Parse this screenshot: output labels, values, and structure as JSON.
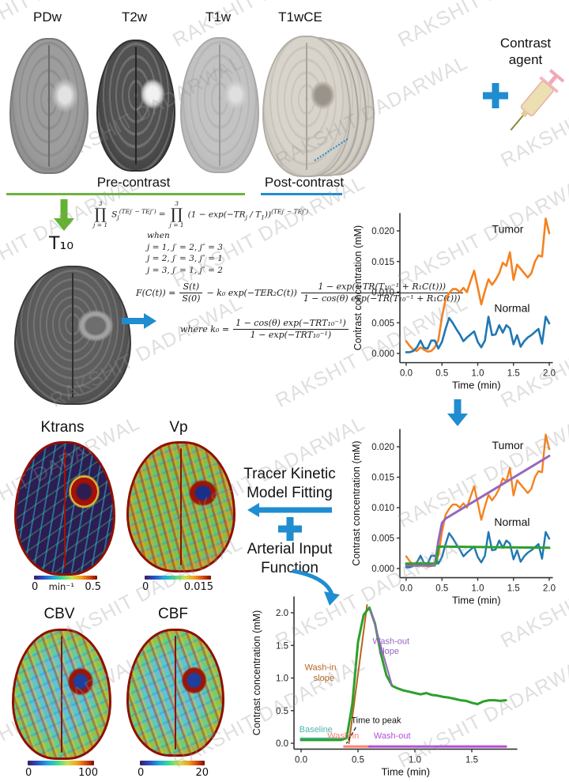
{
  "watermark": {
    "text": "RAKSHIT DADARWAL"
  },
  "colors": {
    "arrow_blue": "#1f8dd0",
    "arrow_green": "#63b32e",
    "pre_contrast_line": "#6db33f",
    "post_contrast_line": "#1f8dd0",
    "tumor_orange": "#f5821f",
    "normal_blue": "#2077b4",
    "fit_purple": "#9467bd",
    "fit_green": "#2ca02c",
    "baseline_teal": "#4db6ac",
    "washin_salmon": "#fa8072",
    "washout_violet": "#b44fd6",
    "washin_slope_brown": "#b5651d"
  },
  "top_row": {
    "modalities": [
      {
        "label": "PDw"
      },
      {
        "label": "T2w"
      },
      {
        "label": "T1w"
      },
      {
        "label": "T1wCE"
      }
    ],
    "plus": "",
    "contrast_agent_line1": "Contrast",
    "contrast_agent_line2": "agent"
  },
  "phase_labels": {
    "pre": "Pre-contrast",
    "post": "Post-contrast"
  },
  "equations": {
    "t10_label": "T₁₀",
    "eq1": {
      "prod_sup": "3",
      "prod_sub": "j = 1",
      "s": "S",
      "s_sub": "j",
      "exp": "(TEj′ − TEj″)",
      "equals": "=",
      "prod2_sup": "3",
      "prod2_sub": "j = 1",
      "rhs1": "(1 − exp(−TR",
      "rhs1_sub": "j",
      "rhs2": " / T",
      "rhs2_sub": "1",
      "rhs3": "))",
      "exp2": "(TEj′ − TEj″)",
      "when": "when",
      "cases": [
        "j = 1, j′ = 2, j″ = 3",
        "j = 2, j′ = 3, j″ = 1",
        "j = 3, j′ = 1, j″ = 2"
      ]
    },
    "eq2": {
      "lhs": "F(C(t)) =",
      "frac1_num": "S(t)",
      "frac1_den": "S(0)",
      "mid": "−  k₀ exp(−TER₂C(t))",
      "frac2_num": "1 − exp(−TR(T₁₀⁻¹ + R₁C(t)))",
      "frac2_den": "1 − cos(θ) exp(−TR(T₁₀⁻¹ + R₁C(t)))",
      "where": "where k₀ =",
      "frac3_num": "1 − cos(θ) exp(−TRT₁₀⁻¹)",
      "frac3_den": "1 − exp(−TRT₁₀⁻¹)",
      "period": "."
    }
  },
  "maps": {
    "ktrans": {
      "title": "Ktrans",
      "cbar_min": "0",
      "cbar_unit": "min⁻¹",
      "cbar_max": "0.5"
    },
    "vp": {
      "title": "Vp",
      "cbar_min": "0",
      "cbar_max": "0.015"
    },
    "cbv": {
      "title": "CBV",
      "cbar_min": "0",
      "cbar_max": "100"
    },
    "cbf": {
      "title": "CBF",
      "cbar_min": "0",
      "cbar_max": "20"
    }
  },
  "middle": {
    "tracer_line1": "Tracer Kinetic",
    "tracer_line2": "Model Fitting",
    "plus": "",
    "aif_line1": "Arterial Input",
    "aif_line2": "Function"
  },
  "chart_data": [
    {
      "id": "raw-concentration",
      "type": "line",
      "title": "",
      "xlabel": "Time (min)",
      "ylabel": "Contrast concentration (mM)",
      "xlim": [
        0,
        2.05
      ],
      "ylim": [
        -0.0015,
        0.0229
      ],
      "xticks": {
        "values": [
          0,
          0.5,
          1.0,
          1.5,
          2.0
        ],
        "labels": [
          "0.0",
          "0.5",
          "1.0",
          "1.5",
          "2.0"
        ]
      },
      "yticks": {
        "values": [
          0,
          0.005,
          0.01,
          0.015,
          0.02
        ],
        "labels": [
          "0.000",
          "0.005",
          "0.010",
          "0.015",
          "0.020"
        ]
      },
      "x": [
        0,
        0.05,
        0.1,
        0.15,
        0.2,
        0.25,
        0.3,
        0.35,
        0.4,
        0.45,
        0.5,
        0.55,
        0.6,
        0.65,
        0.7,
        0.75,
        0.8,
        0.85,
        0.9,
        0.95,
        1,
        1.05,
        1.1,
        1.15,
        1.2,
        1.25,
        1.3,
        1.35,
        1.4,
        1.45,
        1.5,
        1.55,
        1.6,
        1.65,
        1.7,
        1.75,
        1.8,
        1.85,
        1.9,
        1.95,
        2
      ],
      "series": [
        {
          "name": "Tumor",
          "color": "#f5821f",
          "width": 2.6,
          "y": [
            0.002,
            0.0012,
            0.0006,
            0.0004,
            0.001,
            0.0006,
            0.0003,
            0.0004,
            0.001,
            0.0022,
            0.006,
            0.0088,
            0.0098,
            0.0105,
            0.0105,
            0.01,
            0.0107,
            0.01,
            0.0118,
            0.0135,
            0.0108,
            0.008,
            0.0102,
            0.0121,
            0.0112,
            0.012,
            0.0131,
            0.0148,
            0.0143,
            0.0165,
            0.012,
            0.0145,
            0.0138,
            0.0131,
            0.0124,
            0.0131,
            0.015,
            0.016,
            0.0158,
            0.022,
            0.0196
          ]
        },
        {
          "name": "Normal",
          "color": "#2077b4",
          "width": 2.6,
          "y": [
            0.0002,
            0.0002,
            0.0004,
            0.001,
            0.0021,
            0.0009,
            0.0008,
            0.0021,
            0.0021,
            0.0008,
            0.0019,
            0.004,
            0.0058,
            0.005,
            0.004,
            0.0031,
            0.002,
            0.0026,
            0.0031,
            0.0036,
            0.0019,
            0.001,
            0.0021,
            0.006,
            0.003,
            0.0031,
            0.0046,
            0.0034,
            0.0046,
            0.0041,
            0.0015,
            0.003,
            0.0011,
            0.002,
            0.0026,
            0.003,
            0.0035,
            0.004,
            0.0016,
            0.006,
            0.0049
          ]
        }
      ],
      "annotations": [
        {
          "text": "Tumor",
          "x": 1.42,
          "y": 0.0197,
          "color": "#111",
          "size": 14
        },
        {
          "text": "Normal",
          "x": 1.48,
          "y": 0.0068,
          "color": "#111",
          "size": 14
        }
      ]
    },
    {
      "id": "fitted-concentration",
      "type": "line",
      "title": "",
      "xlabel": "Time (min)",
      "ylabel": "Contrast concentration (mM)",
      "xlim": [
        0,
        2.05
      ],
      "ylim": [
        -0.0015,
        0.0229
      ],
      "xticks": {
        "values": [
          0,
          0.5,
          1.0,
          1.5,
          2.0
        ],
        "labels": [
          "0.0",
          "0.5",
          "1.0",
          "1.5",
          "2.0"
        ]
      },
      "yticks": {
        "values": [
          0,
          0.005,
          0.01,
          0.015,
          0.02
        ],
        "labels": [
          "0.000",
          "0.005",
          "0.010",
          "0.015",
          "0.020"
        ]
      },
      "x": [
        0,
        0.05,
        0.1,
        0.15,
        0.2,
        0.25,
        0.3,
        0.35,
        0.4,
        0.45,
        0.5,
        0.55,
        0.6,
        0.65,
        0.7,
        0.75,
        0.8,
        0.85,
        0.9,
        0.95,
        1,
        1.05,
        1.1,
        1.15,
        1.2,
        1.25,
        1.3,
        1.35,
        1.4,
        1.45,
        1.5,
        1.55,
        1.6,
        1.65,
        1.7,
        1.75,
        1.8,
        1.85,
        1.9,
        1.95,
        2
      ],
      "series": [
        {
          "name": "Tumor",
          "color": "#f5821f",
          "width": 2.4,
          "y": [
            0.002,
            0.0012,
            0.0006,
            0.0004,
            0.001,
            0.0006,
            0.0003,
            0.0004,
            0.001,
            0.0022,
            0.006,
            0.0088,
            0.0098,
            0.0105,
            0.0105,
            0.01,
            0.0107,
            0.01,
            0.0118,
            0.0135,
            0.0108,
            0.008,
            0.0102,
            0.0121,
            0.0112,
            0.012,
            0.0131,
            0.0148,
            0.0143,
            0.0165,
            0.012,
            0.0145,
            0.0138,
            0.0131,
            0.0124,
            0.0131,
            0.015,
            0.016,
            0.0158,
            0.022,
            0.0196
          ]
        },
        {
          "name": "Normal",
          "color": "#2077b4",
          "width": 2.4,
          "y": [
            0.0002,
            0.0002,
            0.0004,
            0.001,
            0.0021,
            0.0009,
            0.0008,
            0.0021,
            0.0021,
            0.0008,
            0.0019,
            0.004,
            0.0058,
            0.005,
            0.004,
            0.0031,
            0.002,
            0.0026,
            0.0031,
            0.0036,
            0.0019,
            0.001,
            0.0021,
            0.006,
            0.003,
            0.0031,
            0.0046,
            0.0034,
            0.0046,
            0.0041,
            0.0015,
            0.003,
            0.0011,
            0.002,
            0.0026,
            0.003,
            0.0035,
            0.004,
            0.0016,
            0.006,
            0.0049
          ]
        },
        {
          "name": "Tumor fit",
          "color": "#9467bd",
          "width": 3,
          "x": [
            0,
            0.4,
            0.45,
            0.5,
            0.55,
            2.0
          ],
          "y": [
            0.0005,
            0.0005,
            0.0045,
            0.0075,
            0.0082,
            0.0185
          ]
        },
        {
          "name": "Normal fit",
          "color": "#2ca02c",
          "width": 3,
          "x": [
            0,
            0.42,
            0.45,
            2.0
          ],
          "y": [
            0.0008,
            0.0008,
            0.0036,
            0.0034
          ]
        }
      ],
      "annotations": [
        {
          "text": "Tumor",
          "x": 1.42,
          "y": 0.0196,
          "color": "#111",
          "size": 14
        },
        {
          "text": "Normal",
          "x": 1.48,
          "y": 0.007,
          "color": "#111",
          "size": 14
        }
      ]
    },
    {
      "id": "arterial-input-function",
      "type": "line",
      "title": "",
      "xlabel": "Time (min)",
      "ylabel": "Contrast concentration (mM)",
      "xlim": [
        0,
        1.9
      ],
      "ylim": [
        -0.09,
        2.25
      ],
      "xticks": {
        "values": [
          0,
          0.5,
          1.0,
          1.5
        ],
        "labels": [
          "0.0",
          "0.5",
          "1.0",
          "1.5"
        ]
      },
      "yticks": {
        "values": [
          0,
          0.5,
          1.0,
          1.5,
          2.0
        ],
        "labels": [
          "0.0",
          "0.5",
          "1.0",
          "1.5",
          "2.0"
        ]
      },
      "x": [
        0,
        0.05,
        0.1,
        0.15,
        0.2,
        0.25,
        0.3,
        0.35,
        0.4,
        0.45,
        0.5,
        0.55,
        0.6,
        0.65,
        0.7,
        0.75,
        0.8,
        0.85,
        0.9,
        0.95,
        1,
        1.05,
        1.1,
        1.15,
        1.2,
        1.25,
        1.3,
        1.35,
        1.4,
        1.45,
        1.5,
        1.55,
        1.6,
        1.65,
        1.7,
        1.75,
        1.8
      ],
      "series": [
        {
          "name": "Baseline",
          "color": "#4db6ac",
          "width": 3,
          "x": [
            0,
            0.38
          ],
          "y": [
            0.07,
            0.07
          ]
        },
        {
          "name": "Wash-in segment",
          "color": "#fa8072",
          "width": 3,
          "x": [
            0.38,
            0.62
          ],
          "y": [
            -0.05,
            -0.05
          ]
        },
        {
          "name": "Wash-out segment",
          "color": "#b44fd6",
          "width": 3,
          "x": [
            0.6,
            1.8
          ],
          "y": [
            -0.05,
            -0.05
          ]
        },
        {
          "name": "Wash-in slope",
          "color": "#b5651d",
          "width": 2,
          "x": [
            0.42,
            0.58
          ],
          "y": [
            0.0,
            2.12
          ]
        },
        {
          "name": "AIF",
          "color": "#2ca02c",
          "width": 3,
          "y": [
            0.05,
            0.05,
            0.05,
            0.05,
            0.05,
            0.05,
            0.05,
            0.05,
            0.08,
            0.6,
            1.55,
            1.97,
            2.08,
            1.83,
            1.38,
            1.04,
            0.88,
            0.84,
            0.81,
            0.79,
            0.77,
            0.75,
            0.77,
            0.74,
            0.73,
            0.71,
            0.7,
            0.68,
            0.66,
            0.65,
            0.62,
            0.6,
            0.64,
            0.66,
            0.66,
            0.65,
            0.66
          ]
        },
        {
          "name": "Wash-out slope",
          "color": "#9467bd",
          "width": 2,
          "x": [
            0.61,
            0.8
          ],
          "y": [
            2.05,
            0.88
          ]
        },
        {
          "name": "Time-to-peak pointer",
          "color": "#111",
          "width": 1.2,
          "dash": "4 3",
          "x": [
            0.48,
            0.4
          ],
          "y": [
            0.24,
            0.0
          ]
        }
      ],
      "annotations": [
        {
          "text": "Wash-in",
          "x": 0.17,
          "y": 1.12,
          "color": "#b5651d",
          "size": 11
        },
        {
          "text": "slope",
          "x": 0.2,
          "y": 0.96,
          "color": "#b5651d",
          "size": 11
        },
        {
          "text": "Wash-out",
          "x": 0.79,
          "y": 1.52,
          "color": "#9467bd",
          "size": 11
        },
        {
          "text": "slope",
          "x": 0.77,
          "y": 1.37,
          "color": "#9467bd",
          "size": 11
        },
        {
          "text": "Baseline",
          "x": 0.13,
          "y": 0.17,
          "color": "#4db6ac",
          "size": 11
        },
        {
          "text": "Wash-in",
          "x": 0.37,
          "y": 0.07,
          "color": "#fa8072",
          "size": 11
        },
        {
          "text": "Wash-out",
          "x": 0.8,
          "y": 0.07,
          "color": "#b44fd6",
          "size": 11
        },
        {
          "text": "Time to peak",
          "x": 0.44,
          "y": 0.31,
          "color": "#111",
          "size": 11,
          "anchor": "start"
        }
      ]
    }
  ]
}
